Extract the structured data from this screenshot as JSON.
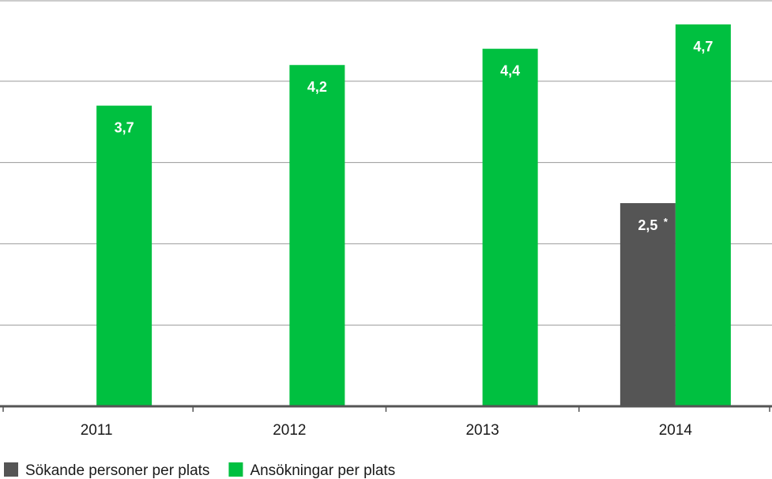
{
  "chart_data": {
    "type": "bar",
    "categories": [
      "2011",
      "2012",
      "2013",
      "2014"
    ],
    "series": [
      {
        "name": "Sökande personer per plats",
        "color": "#555555",
        "values": [
          null,
          null,
          null,
          2.5
        ],
        "labels": [
          null,
          null,
          null,
          "2,5"
        ],
        "annotations": [
          null,
          null,
          null,
          "*"
        ]
      },
      {
        "name": "Ansökningar per plats",
        "color": "#00c040",
        "values": [
          3.7,
          4.2,
          4.4,
          4.7
        ],
        "labels": [
          "3,7",
          "4,2",
          "4,4",
          "4,7"
        ],
        "annotations": [
          null,
          null,
          null,
          null
        ]
      }
    ],
    "ylim": [
      0,
      5
    ],
    "yticks": [
      0,
      1,
      2,
      3,
      4,
      5
    ],
    "grid": true,
    "legend": "bottom-left"
  }
}
